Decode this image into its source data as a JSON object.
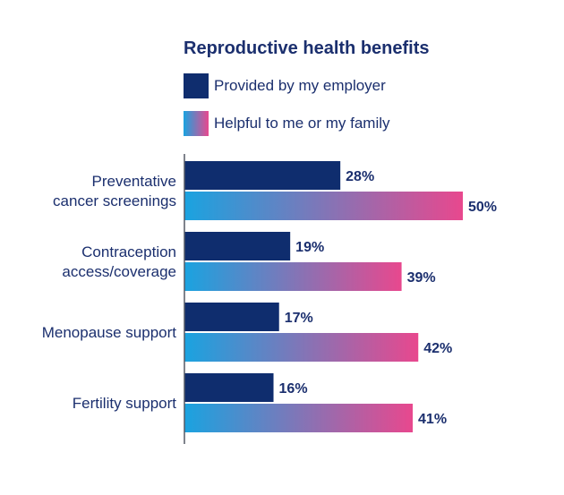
{
  "chart_data": {
    "type": "bar",
    "orientation": "horizontal",
    "title": "Reproductive health benefits",
    "categories": [
      [
        "Preventative",
        "cancer screenings"
      ],
      [
        "Contraception",
        "access/coverage"
      ],
      [
        "Menopause support"
      ],
      [
        "Fertility support"
      ]
    ],
    "series": [
      {
        "name": "Provided by my employer",
        "values": [
          28,
          19,
          17,
          16
        ],
        "labels": [
          "28%",
          "19%",
          "17%",
          "16%"
        ],
        "color": "#0f2d6e"
      },
      {
        "name": "Helpful to me or my family",
        "values": [
          50,
          39,
          42,
          41
        ],
        "labels": [
          "50%",
          "39%",
          "42%",
          "41%"
        ],
        "gradient": [
          "#1aa3e0",
          "#e8488e"
        ]
      }
    ],
    "value_unit": "%",
    "xlim": [
      0,
      60
    ],
    "grid": false,
    "legend_position": "top"
  }
}
